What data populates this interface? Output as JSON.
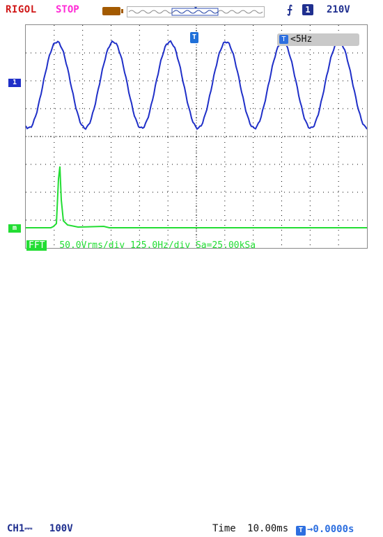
{
  "header": {
    "brand": "RIGOL",
    "run_state": "STOP",
    "trigger_level": "210V"
  },
  "trigger": {
    "channel_badge": "1",
    "frequency_text": "<5Hz"
  },
  "math": {
    "tag": "FFT",
    "settings": "50.0Vrms/div 125.0Hz/div Sa=25.00kSa"
  },
  "status": {
    "ch1_label": "CH1",
    "ch1_coupling": "⎓",
    "ch1_scale": "100V",
    "time_label": "Time",
    "time_scale": "10.00ms",
    "trigger_offset": "→0.0000s"
  },
  "markers": {
    "ch1_marker": "1",
    "math_marker": "m",
    "trigger_pos_marker": "T"
  },
  "colors": {
    "ch1": "#1f2fc8",
    "math": "#22dd33",
    "brand": "#d01818",
    "run_state": "#ff2bd6"
  },
  "icons": {
    "battery": "battery-icon",
    "trigger_edge": "rising-edge-icon"
  }
}
